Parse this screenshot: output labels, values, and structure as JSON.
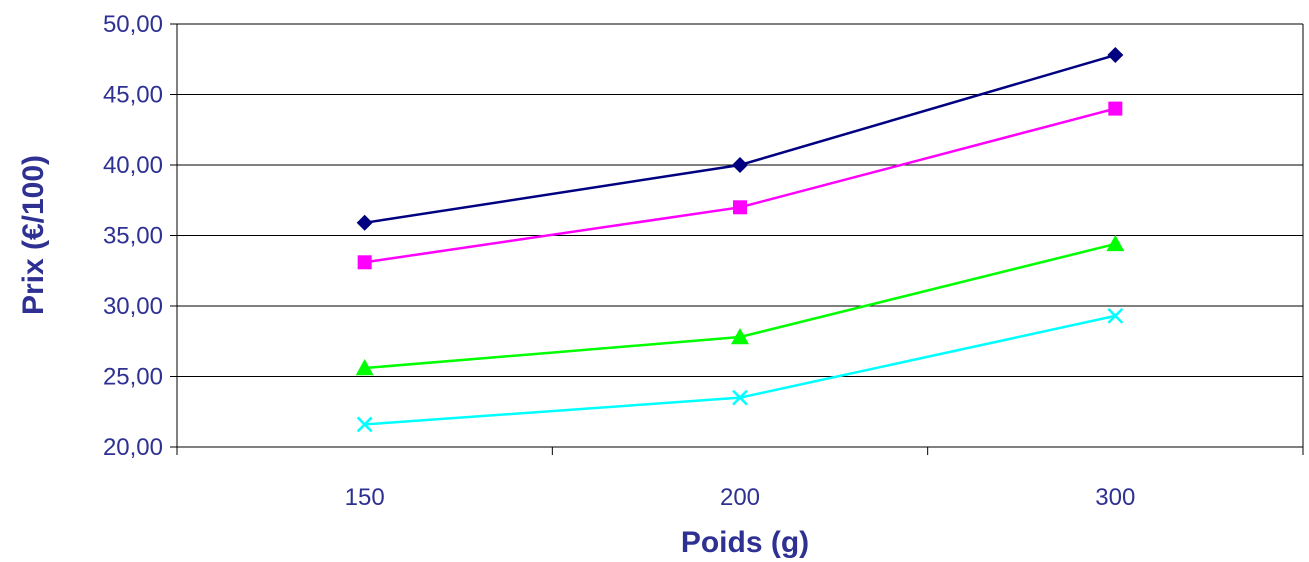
{
  "chart_data": {
    "type": "line",
    "categories": [
      "150",
      "200",
      "300"
    ],
    "series": [
      {
        "values": [
          35.9,
          40.0,
          47.8
        ],
        "color": "#000080",
        "marker": "diamond"
      },
      {
        "values": [
          33.1,
          37.0,
          44.0
        ],
        "color": "#ff00ff",
        "marker": "square"
      },
      {
        "values": [
          25.6,
          27.8,
          34.4
        ],
        "color": "#00ff00",
        "marker": "triangle"
      },
      {
        "values": [
          21.6,
          23.5,
          29.3
        ],
        "color": "#00ffff",
        "marker": "x"
      }
    ],
    "y_ticks": [
      "20,00",
      "25,00",
      "30,00",
      "35,00",
      "40,00",
      "45,00",
      "50,00"
    ],
    "ylim": [
      20,
      50
    ],
    "xlabel": "Poids (g)",
    "ylabel": "Prix (€/100)",
    "grid": true,
    "legend": "none",
    "label_color": "#2e3192",
    "axis_color": "#000000"
  }
}
